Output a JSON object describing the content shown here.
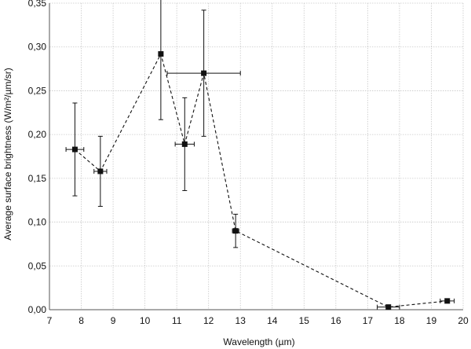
{
  "chart_data": {
    "type": "scatter",
    "title": "",
    "xlabel": "Wavelength (µm)",
    "ylabel": "Average surface brightness (W/m²/µm/sr)",
    "xlim": [
      7,
      20
    ],
    "ylim": [
      0,
      0.35
    ],
    "x_ticks": [
      7,
      8,
      9,
      10,
      11,
      12,
      13,
      14,
      15,
      16,
      17,
      18,
      19,
      20
    ],
    "x_tick_labels": [
      "7",
      "8",
      "9",
      "10",
      "11",
      "12",
      "13",
      "14",
      "15",
      "16",
      "17",
      "18",
      "19",
      "20"
    ],
    "y_ticks": [
      0,
      0.05,
      0.1,
      0.15,
      0.2,
      0.25,
      0.3,
      0.35
    ],
    "y_tick_labels": [
      "0,00",
      "0,05",
      "0,10",
      "0,15",
      "0,20",
      "0,25",
      "0,30",
      "0,35"
    ],
    "grid": true,
    "connected": true,
    "line_style": "dashed",
    "marker": "square",
    "color": "#111111",
    "series": [
      {
        "points": [
          {
            "x": 7.8,
            "y": 0.183,
            "xerr": 0.28,
            "yerr": 0.053
          },
          {
            "x": 8.6,
            "y": 0.158,
            "xerr": 0.2,
            "yerr": 0.04
          },
          {
            "x": 10.5,
            "y": 0.292,
            "xerr": 0.0,
            "yerr": 0.075
          },
          {
            "x": 11.25,
            "y": 0.189,
            "xerr": 0.3,
            "yerr": 0.053
          },
          {
            "x": 11.85,
            "y": 0.27,
            "xerr": 1.15,
            "yerr": 0.072
          },
          {
            "x": 12.85,
            "y": 0.09,
            "xerr": 0.1,
            "yerr": 0.019
          },
          {
            "x": 17.65,
            "y": 0.003,
            "xerr": 0.35,
            "yerr": 0.0
          },
          {
            "x": 19.5,
            "y": 0.01,
            "xerr": 0.22,
            "yerr": 0.0
          }
        ]
      }
    ]
  }
}
